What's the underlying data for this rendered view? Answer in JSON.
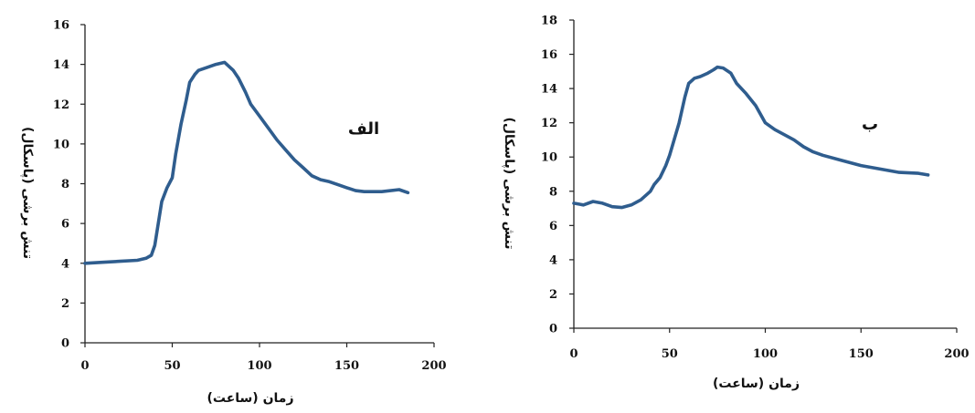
{
  "chart_data": [
    {
      "type": "line",
      "panel_label": "الف",
      "xlabel": "زمان (ساعت)",
      "ylabel": "تنش برشی (پاسکال)",
      "xlim": [
        0,
        200
      ],
      "ylim": [
        0,
        16
      ],
      "xticks": [
        "0",
        "50",
        "100",
        "150",
        "200"
      ],
      "yticks": [
        "0",
        "2",
        "4",
        "6",
        "8",
        "10",
        "12",
        "14",
        "16"
      ],
      "grid": false,
      "series_color": "#2f5d8e",
      "series": [
        {
          "x": [
            0,
            10,
            20,
            30,
            35,
            38,
            40,
            42,
            44,
            47,
            50,
            52,
            55,
            58,
            60,
            63,
            65,
            70,
            75,
            80,
            85,
            88,
            92,
            95,
            100,
            105,
            110,
            115,
            120,
            125,
            130,
            135,
            140,
            145,
            150,
            155,
            160,
            170,
            180,
            185
          ],
          "y": [
            4.0,
            4.05,
            4.1,
            4.15,
            4.25,
            4.4,
            4.9,
            6.0,
            7.1,
            7.8,
            8.3,
            9.5,
            11.0,
            12.2,
            13.1,
            13.5,
            13.7,
            13.85,
            14.0,
            14.1,
            13.7,
            13.3,
            12.6,
            12.0,
            11.4,
            10.8,
            10.2,
            9.7,
            9.2,
            8.8,
            8.4,
            8.2,
            8.1,
            7.95,
            7.8,
            7.65,
            7.6,
            7.6,
            7.7,
            7.55
          ]
        }
      ]
    },
    {
      "type": "line",
      "panel_label": "ب",
      "xlabel": "زمان (ساعت)",
      "ylabel": "تنش برشی (پاسکال)",
      "xlim": [
        0,
        200
      ],
      "ylim": [
        0,
        18
      ],
      "xticks": [
        "0",
        "50",
        "100",
        "150",
        "200"
      ],
      "yticks": [
        "0",
        "2",
        "4",
        "6",
        "8",
        "10",
        "12",
        "14",
        "16",
        "18"
      ],
      "grid": false,
      "series_color": "#2f5d8e",
      "series": [
        {
          "x": [
            0,
            5,
            10,
            15,
            20,
            25,
            30,
            35,
            40,
            42,
            45,
            48,
            50,
            55,
            58,
            60,
            63,
            66,
            70,
            73,
            75,
            78,
            82,
            85,
            90,
            95,
            100,
            105,
            110,
            115,
            120,
            125,
            130,
            140,
            150,
            160,
            170,
            180,
            185
          ],
          "y": [
            7.3,
            7.2,
            7.4,
            7.3,
            7.1,
            7.05,
            7.2,
            7.5,
            8.0,
            8.4,
            8.8,
            9.5,
            10.1,
            12.0,
            13.5,
            14.3,
            14.6,
            14.7,
            14.9,
            15.1,
            15.25,
            15.2,
            14.9,
            14.3,
            13.7,
            13.0,
            12.0,
            11.6,
            11.3,
            11.0,
            10.6,
            10.3,
            10.1,
            9.8,
            9.5,
            9.3,
            9.1,
            9.05,
            8.95
          ]
        }
      ]
    }
  ]
}
